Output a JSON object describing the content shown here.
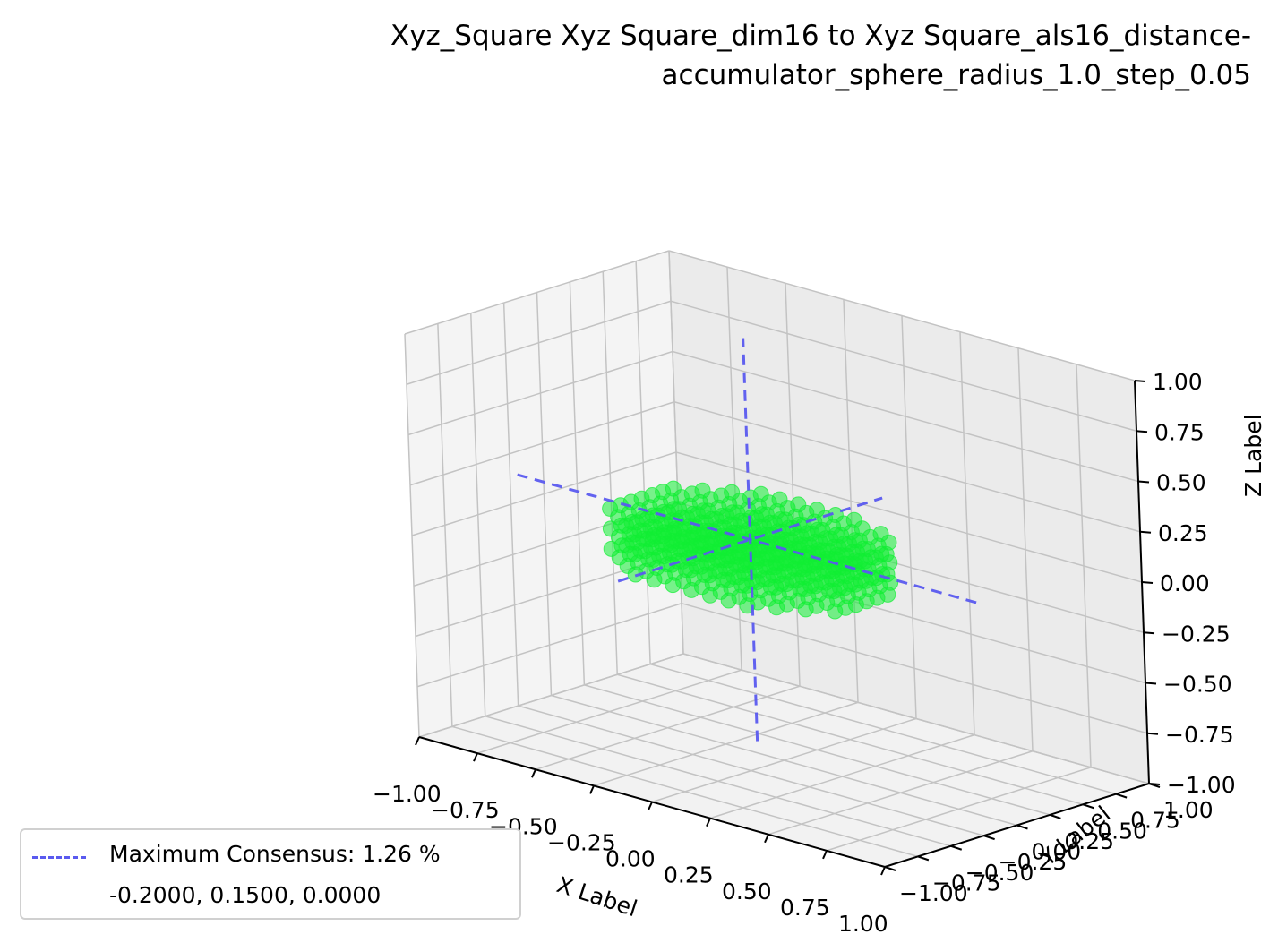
{
  "chart_data": {
    "type": "scatter3d",
    "title_line1": "Xyz_Square Xyz Square_dim16 to Xyz Square_als16_distance-",
    "title_line2": "accumulator_sphere_radius_1.0_step_0.05",
    "xlabel": "X Label",
    "ylabel": "Y Label",
    "zlabel": "Z Label",
    "xlim": [
      -1.0,
      1.0
    ],
    "ylim": [
      -1.0,
      1.0
    ],
    "zlim": [
      -1.0,
      1.0
    ],
    "x_ticks": [
      "−1.00",
      "−0.75",
      "−0.50",
      "−0.25",
      "0.00",
      "0.25",
      "0.50",
      "0.75",
      "1.00"
    ],
    "y_ticks": [
      "−1.00",
      "−0.75",
      "−0.50",
      "−0.25",
      "0.00",
      "0.25",
      "0.50",
      "0.75",
      "1.00"
    ],
    "z_ticks": [
      "−1.00",
      "−0.75",
      "−0.50",
      "−0.25",
      "0.00",
      "0.25",
      "0.50",
      "0.75",
      "1.00"
    ],
    "grid": true,
    "point_color": "#11ee33",
    "line_color": "#5a5aef",
    "points": {
      "shape": "flattened disc",
      "center": [
        -0.2,
        0.15,
        0.0
      ],
      "radius_xy": 0.55,
      "z_range": [
        -0.15,
        0.05
      ],
      "step": 0.05
    },
    "consensus_lines": {
      "center": [
        -0.2,
        0.15,
        0.0
      ],
      "half_length": 1.0
    },
    "legend": {
      "position": "lower-left",
      "label": "Maximum Consensus: 1.26 %",
      "sublabel": "-0.2000, 0.1500, 0.0000"
    }
  }
}
